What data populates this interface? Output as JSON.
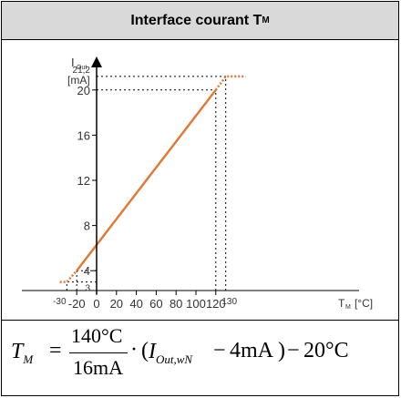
{
  "panel": {
    "title_main": "Interface courant T",
    "title_sub": "M"
  },
  "chart_data": {
    "type": "line",
    "ylabel_main": "I",
    "ylabel_sub": "Out",
    "yunit": "[mA]",
    "xlabel_main": "T",
    "xlabel_sub": "M",
    "xunit": "[°C]",
    "xlim": [
      -37,
      152
    ],
    "ylim": [
      2,
      22.5
    ],
    "x_ticks": [
      {
        "value": -20,
        "label": "-20"
      },
      {
        "value": 0,
        "label": "0"
      },
      {
        "value": 20,
        "label": "20"
      },
      {
        "value": 40,
        "label": "40"
      },
      {
        "value": 60,
        "label": "60"
      },
      {
        "value": 80,
        "label": "80"
      },
      {
        "value": 100,
        "label": "100"
      },
      {
        "value": 120,
        "label": "120"
      }
    ],
    "x_small_labels": [
      {
        "value": -30,
        "label": "-30"
      },
      {
        "value": 130,
        "label": "130"
      }
    ],
    "y_ticks": [
      {
        "value": 4,
        "label": "4"
      },
      {
        "value": 8,
        "label": "8"
      },
      {
        "value": 12,
        "label": "12"
      },
      {
        "value": 16,
        "label": "16"
      },
      {
        "value": 20,
        "label": "20"
      }
    ],
    "y_small_labels": [
      {
        "value": 3,
        "label": "3"
      },
      {
        "value": 21.2,
        "label": "21,2"
      }
    ],
    "series": [
      {
        "style": "solid",
        "x": [
          -20,
          120
        ],
        "y": [
          4,
          20
        ]
      },
      {
        "style": "dotted",
        "x": [
          -37,
          -30,
          -20
        ],
        "y": [
          3,
          3,
          4
        ]
      },
      {
        "style": "dotted",
        "x": [
          120,
          130,
          150
        ],
        "y": [
          20,
          21.2,
          21.2
        ]
      }
    ],
    "guides": [
      {
        "x": -30,
        "y": 3
      },
      {
        "x": -20,
        "y": 4
      },
      {
        "x": 120,
        "y": 20
      },
      {
        "x": 130,
        "y": 21.2
      }
    ],
    "colors": {
      "line": "#e07a3a",
      "axis": "#000000",
      "guide": "#000000",
      "tick_text": "#333333"
    }
  },
  "formula": {
    "lhs_main": "T",
    "lhs_sub": "M",
    "equals": "=",
    "num": "140°C",
    "den": "16mA",
    "dot": "·",
    "lparen": "(",
    "i_main": "I",
    "i_sub": "Out,wN",
    "minus1": "−",
    "four": "4mA",
    "rparen": ")",
    "minus2": "−",
    "twenty": "20°C"
  }
}
